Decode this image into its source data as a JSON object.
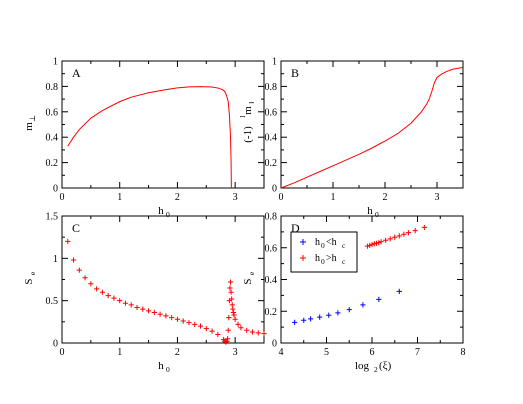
{
  "chart_data": [
    {
      "panel": "A",
      "type": "line",
      "title": "",
      "panel_label": "A",
      "xlabel": "h",
      "xlabel_sub": "0",
      "ylabel": "m",
      "ylabel_sub": "⊥",
      "xlim": [
        0,
        3.5
      ],
      "ylim": [
        0,
        1
      ],
      "xticks": [
        "0",
        "1",
        "2",
        "3"
      ],
      "yticks": [
        "0",
        "0.2",
        "0.4",
        "0.6",
        "0.8",
        "1"
      ],
      "series": [
        {
          "color": "#ff0000",
          "x": [
            0.1,
            0.2,
            0.3,
            0.5,
            0.7,
            1.0,
            1.2,
            1.5,
            1.8,
            2.0,
            2.2,
            2.4,
            2.6,
            2.7,
            2.78,
            2.82,
            2.85,
            2.88,
            2.9,
            2.92,
            2.93,
            2.935
          ],
          "y": [
            0.33,
            0.4,
            0.46,
            0.55,
            0.61,
            0.68,
            0.715,
            0.75,
            0.775,
            0.788,
            0.796,
            0.798,
            0.795,
            0.787,
            0.775,
            0.76,
            0.73,
            0.68,
            0.58,
            0.4,
            0.2,
            0.0
          ]
        }
      ]
    },
    {
      "panel": "B",
      "type": "line",
      "title": "",
      "panel_label": "B",
      "xlabel": "h",
      "xlabel_sub": "0",
      "ylabel": "(-1)",
      "ylabel_sup": "l",
      "ylabel2": "m",
      "ylabel_sub": "‖",
      "xlim": [
        0,
        3.5
      ],
      "ylim": [
        0,
        1
      ],
      "xticks": [
        "0",
        "1",
        "2",
        "3"
      ],
      "yticks": [
        "0",
        "0.2",
        "0.4",
        "0.6",
        "0.8",
        "1"
      ],
      "series": [
        {
          "color": "#ff0000",
          "x": [
            0.0,
            0.25,
            0.5,
            0.75,
            1.0,
            1.25,
            1.5,
            1.75,
            2.0,
            2.25,
            2.5,
            2.7,
            2.8,
            2.85,
            2.9,
            2.95,
            3.0,
            3.1,
            3.2,
            3.3,
            3.5
          ],
          "y": [
            0.0,
            0.04,
            0.085,
            0.13,
            0.175,
            0.22,
            0.265,
            0.315,
            0.37,
            0.43,
            0.51,
            0.6,
            0.66,
            0.7,
            0.76,
            0.83,
            0.87,
            0.9,
            0.92,
            0.935,
            0.95
          ]
        }
      ]
    },
    {
      "panel": "C",
      "type": "scatter",
      "title": "",
      "panel_label": "C",
      "xlabel": "h",
      "xlabel_sub": "0",
      "ylabel": "S",
      "ylabel_sub": "e",
      "xlim": [
        0,
        3.5
      ],
      "ylim": [
        0,
        1.5
      ],
      "xticks": [
        "0",
        "1",
        "2",
        "3"
      ],
      "yticks": [
        "0",
        "0.5",
        "1",
        "1.5"
      ],
      "series": [
        {
          "color": "#ff0000",
          "marker": "+",
          "x": [
            0.1,
            0.2,
            0.3,
            0.4,
            0.5,
            0.6,
            0.7,
            0.8,
            0.9,
            1.0,
            1.1,
            1.2,
            1.3,
            1.4,
            1.5,
            1.6,
            1.7,
            1.8,
            1.9,
            2.0,
            2.1,
            2.2,
            2.3,
            2.4,
            2.5,
            2.6,
            2.7,
            2.8,
            2.82,
            2.84,
            2.86,
            2.87,
            2.88,
            2.89,
            2.9,
            2.91,
            2.92,
            2.93,
            2.94,
            2.95,
            2.96,
            2.97,
            2.98,
            3.0,
            3.05,
            3.1,
            3.2,
            3.3,
            3.4,
            3.5
          ],
          "y": [
            1.2,
            0.98,
            0.86,
            0.77,
            0.7,
            0.64,
            0.6,
            0.56,
            0.53,
            0.5,
            0.47,
            0.45,
            0.42,
            0.4,
            0.38,
            0.36,
            0.34,
            0.32,
            0.3,
            0.28,
            0.26,
            0.24,
            0.22,
            0.2,
            0.17,
            0.14,
            0.1,
            0.04,
            0.02,
            0.01,
            0.02,
            0.05,
            0.15,
            0.3,
            0.5,
            0.65,
            0.72,
            0.6,
            0.52,
            0.45,
            0.4,
            0.36,
            0.33,
            0.28,
            0.22,
            0.18,
            0.15,
            0.13,
            0.12,
            0.11
          ]
        }
      ]
    },
    {
      "panel": "D",
      "type": "scatter",
      "title": "",
      "panel_label": "D",
      "xlabel": "log",
      "xlabel_sub": "2",
      "xlabel_rest": "(ξ)",
      "ylabel": "S",
      "ylabel_sub": "e",
      "xlim": [
        4,
        8
      ],
      "ylim": [
        0,
        0.8
      ],
      "xticks": [
        "4",
        "5",
        "6",
        "7",
        "8"
      ],
      "yticks": [
        "0",
        "0.2",
        "0.4",
        "0.6",
        "0.8"
      ],
      "legend": {
        "placement": "top-left",
        "entries": [
          {
            "label": "h",
            "label_sub": "0",
            "label_mid": "<h",
            "label_sub2": "c",
            "color": "#0000ff"
          },
          {
            "label": "h",
            "label_sub": "0",
            "label_mid": ">h",
            "label_sub2": "c",
            "color": "#ff0000"
          }
        ]
      },
      "series": [
        {
          "color": "#0000ff",
          "marker": "+",
          "x": [
            4.3,
            4.5,
            4.65,
            4.85,
            5.05,
            5.25,
            5.5,
            5.8,
            6.15,
            6.6
          ],
          "y": [
            0.13,
            0.143,
            0.152,
            0.163,
            0.175,
            0.19,
            0.21,
            0.24,
            0.275,
            0.325
          ]
        },
        {
          "color": "#ff0000",
          "marker": "+",
          "x": [
            5.9,
            5.95,
            6.0,
            6.05,
            6.1,
            6.15,
            6.2,
            6.3,
            6.4,
            6.5,
            6.6,
            6.7,
            6.8,
            6.95,
            7.15
          ],
          "y": [
            0.61,
            0.615,
            0.62,
            0.625,
            0.628,
            0.632,
            0.638,
            0.647,
            0.656,
            0.666,
            0.675,
            0.685,
            0.695,
            0.708,
            0.728
          ]
        }
      ]
    }
  ]
}
